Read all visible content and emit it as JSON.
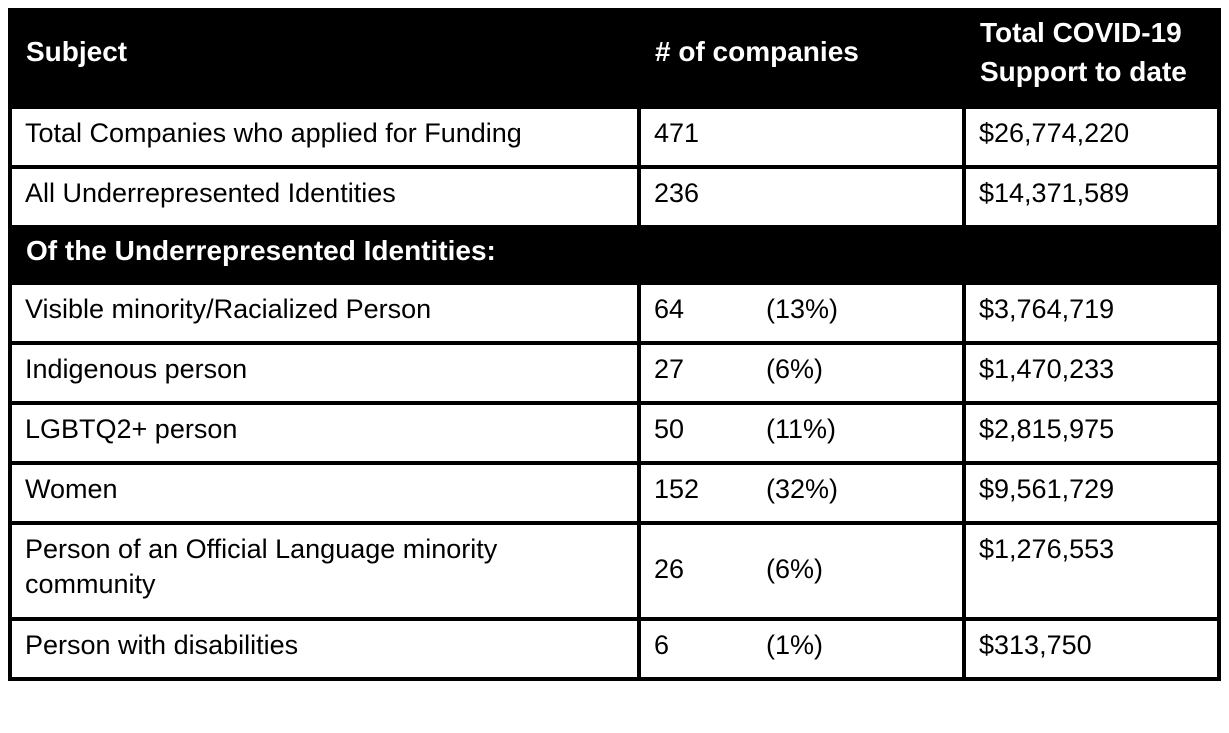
{
  "colors": {
    "header_bg": "#000000",
    "header_text": "#ffffff",
    "body_bg": "#ffffff",
    "body_text": "#000000",
    "border": "#000000"
  },
  "header": {
    "subject": "Subject",
    "companies": "# of companies",
    "support_line1": "Total COVID-19",
    "support_line2": "Support to date"
  },
  "section_header": "Of the Underrepresented Identities:",
  "rows": [
    {
      "subject": "Total Companies who applied for Funding",
      "companies": "471",
      "percent": "",
      "support": "$26,774,220"
    },
    {
      "subject": "All Underrepresented Identities",
      "companies": "236",
      "percent": "",
      "support": "$14,371,589"
    }
  ],
  "section_rows": [
    {
      "subject": "Visible minority/Racialized Person",
      "companies": "64",
      "percent": "(13%)",
      "support": "$3,764,719"
    },
    {
      "subject": "Indigenous person",
      "companies": "27",
      "percent": "(6%)",
      "support": "$1,470,233"
    },
    {
      "subject": "LGBTQ2+ person",
      "companies": "50",
      "percent": "(11%)",
      "support": "$2,815,975"
    },
    {
      "subject": "Women",
      "companies": "152",
      "percent": "(32%)",
      "support": "$9,561,729"
    },
    {
      "subject": "Person of an Official Language minority community",
      "companies": "26",
      "percent": "(6%)",
      "support": "$1,276,553"
    },
    {
      "subject": "Person with disabilities",
      "companies": "6",
      "percent": "(1%)",
      "support": "$313,750"
    }
  ],
  "chart_data": {
    "type": "table",
    "title": "",
    "columns": [
      "Subject",
      "# of companies",
      "Total COVID-19 Support to date"
    ],
    "rows": [
      [
        "Total Companies who applied for Funding",
        "471",
        "$26,774,220"
      ],
      [
        "All Underrepresented Identities",
        "236",
        "$14,371,589"
      ],
      [
        "Of the Underrepresented Identities:",
        "",
        ""
      ],
      [
        "Visible minority/Racialized Person",
        "64 (13%)",
        "$3,764,719"
      ],
      [
        "Indigenous person",
        "27 (6%)",
        "$1,470,233"
      ],
      [
        "LGBTQ2+ person",
        "50 (11%)",
        "$2,815,975"
      ],
      [
        "Women",
        "152 (32%)",
        "$9,561,729"
      ],
      [
        "Person of an Official Language minority community",
        "26 (6%)",
        "$1,276,553"
      ],
      [
        "Person with disabilities",
        "6 (1%)",
        "$313,750"
      ]
    ]
  }
}
